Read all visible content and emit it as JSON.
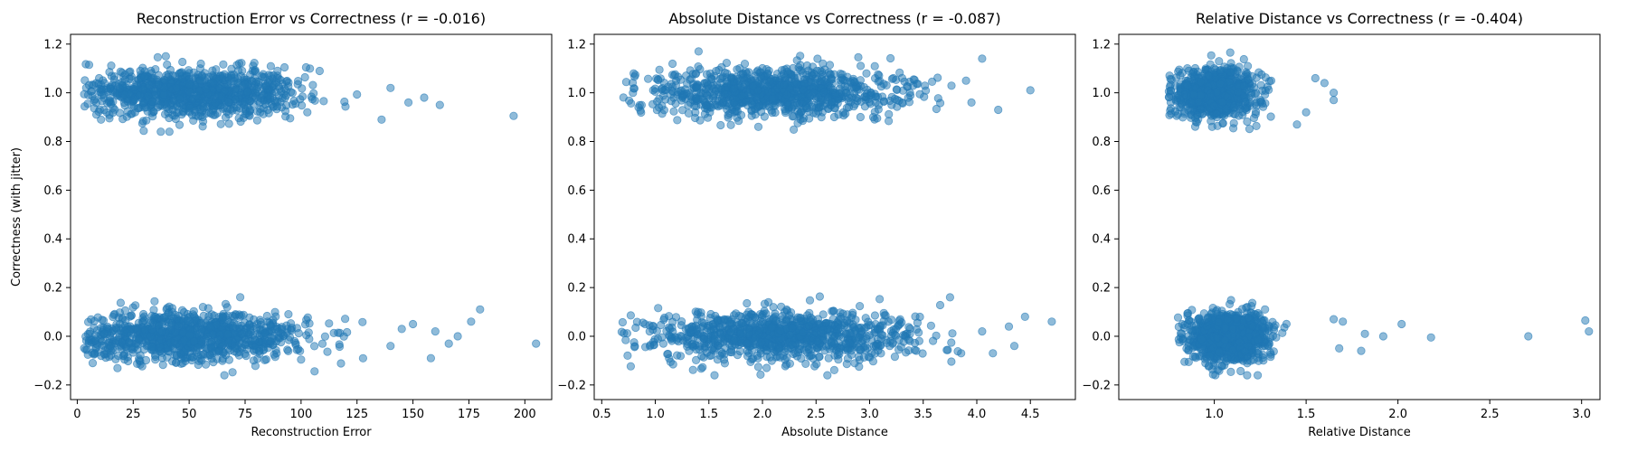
{
  "chart_data": [
    {
      "type": "scatter",
      "title": "Reconstruction Error vs Correctness (r = -0.016)",
      "xlabel": "Reconstruction Error",
      "ylabel": "Correctness (with jitter)",
      "xlim": [
        -3,
        212
      ],
      "ylim": [
        -0.26,
        1.24
      ],
      "xticks": [
        0,
        25,
        50,
        75,
        100,
        125,
        150,
        175,
        200
      ],
      "xtick_labels": [
        "0",
        "25",
        "50",
        "75",
        "100",
        "125",
        "150",
        "175",
        "200"
      ],
      "yticks": [
        -0.2,
        0.0,
        0.2,
        0.4,
        0.6,
        0.8,
        1.0,
        1.2
      ],
      "ytick_labels": [
        "−0.2",
        "0.0",
        "0.2",
        "0.4",
        "0.6",
        "0.8",
        "1.0",
        "1.2"
      ],
      "color": "#1f77b4",
      "grid": false,
      "clusters": [
        {
          "correctness": 1,
          "x_range": [
            3,
            125
          ],
          "x_center": 50,
          "x_spread": 25,
          "count": 1000
        },
        {
          "correctness": 0,
          "x_range": [
            3,
            135
          ],
          "x_center": 50,
          "x_spread": 27,
          "count": 1000
        }
      ],
      "outliers": [
        [
          195,
          0.905
        ],
        [
          162,
          0.95
        ],
        [
          155,
          0.98
        ],
        [
          148,
          0.96
        ],
        [
          140,
          1.02
        ],
        [
          136,
          0.89
        ],
        [
          205,
          -0.03
        ],
        [
          180,
          0.11
        ],
        [
          176,
          0.06
        ],
        [
          170,
          0.0
        ],
        [
          166,
          -0.03
        ],
        [
          160,
          0.02
        ],
        [
          158,
          -0.09
        ],
        [
          150,
          0.05
        ],
        [
          145,
          0.03
        ],
        [
          140,
          -0.04
        ]
      ]
    },
    {
      "type": "scatter",
      "title": "Absolute Distance vs Correctness (r = -0.087)",
      "xlabel": "Absolute Distance",
      "ylabel": "",
      "xlim": [
        0.43,
        4.92
      ],
      "ylim": [
        -0.26,
        1.24
      ],
      "xticks": [
        0.5,
        1.0,
        1.5,
        2.0,
        2.5,
        3.0,
        3.5,
        4.0,
        4.5
      ],
      "xtick_labels": [
        "0.5",
        "1.0",
        "1.5",
        "2.0",
        "2.5",
        "3.0",
        "3.5",
        "4.0",
        "4.5"
      ],
      "yticks": [
        -0.2,
        0.0,
        0.2,
        0.4,
        0.6,
        0.8,
        1.0,
        1.2
      ],
      "ytick_labels": [
        "−0.2",
        "0.0",
        "0.2",
        "0.4",
        "0.6",
        "0.8",
        "1.0",
        "1.2"
      ],
      "color": "#1f77b4",
      "grid": false,
      "clusters": [
        {
          "correctness": 1,
          "x_range": [
            0.65,
            3.8
          ],
          "x_center": 2.1,
          "x_spread": 0.6,
          "count": 1000
        },
        {
          "correctness": 0,
          "x_range": [
            0.65,
            3.9
          ],
          "x_center": 2.2,
          "x_spread": 0.6,
          "count": 1000
        }
      ],
      "outliers": [
        [
          4.5,
          1.01
        ],
        [
          4.05,
          1.14
        ],
        [
          4.2,
          0.93
        ],
        [
          3.95,
          0.96
        ],
        [
          3.9,
          1.05
        ],
        [
          4.7,
          0.06
        ],
        [
          4.45,
          0.08
        ],
        [
          4.3,
          0.04
        ],
        [
          4.35,
          -0.04
        ],
        [
          4.15,
          -0.07
        ],
        [
          4.05,
          0.02
        ],
        [
          3.75,
          0.16
        ]
      ]
    },
    {
      "type": "scatter",
      "title": "Relative Distance vs Correctness (r = -0.404)",
      "xlabel": "Relative Distance",
      "ylabel": "",
      "xlim": [
        0.48,
        3.1
      ],
      "ylim": [
        -0.26,
        1.24
      ],
      "xticks": [
        1.0,
        1.5,
        2.0,
        2.5,
        3.0
      ],
      "xtick_labels": [
        "1.0",
        "1.5",
        "2.0",
        "2.5",
        "3.0"
      ],
      "yticks": [
        -0.2,
        0.0,
        0.2,
        0.4,
        0.6,
        0.8,
        1.0,
        1.2
      ],
      "ytick_labels": [
        "−0.2",
        "0.0",
        "0.2",
        "0.4",
        "0.6",
        "0.8",
        "1.0",
        "1.2"
      ],
      "color": "#1f77b4",
      "grid": false,
      "clusters": [
        {
          "correctness": 1,
          "x_range": [
            0.75,
            1.5
          ],
          "x_center": 1.0,
          "x_spread": 0.12,
          "count": 800
        },
        {
          "correctness": 0,
          "x_range": [
            0.8,
            1.55
          ],
          "x_center": 1.07,
          "x_spread": 0.11,
          "count": 1000
        }
      ],
      "outliers": [
        [
          1.65,
          0.97
        ],
        [
          1.65,
          1.0
        ],
        [
          1.6,
          1.04
        ],
        [
          1.55,
          1.06
        ],
        [
          1.5,
          0.92
        ],
        [
          1.45,
          0.87
        ],
        [
          3.02,
          0.065
        ],
        [
          3.04,
          0.02
        ],
        [
          2.71,
          0.0
        ],
        [
          2.18,
          -0.005
        ],
        [
          2.02,
          0.05
        ],
        [
          1.92,
          0.0
        ],
        [
          1.82,
          0.01
        ],
        [
          1.8,
          -0.06
        ],
        [
          1.7,
          0.06
        ],
        [
          1.68,
          -0.05
        ],
        [
          1.65,
          0.07
        ]
      ]
    }
  ]
}
